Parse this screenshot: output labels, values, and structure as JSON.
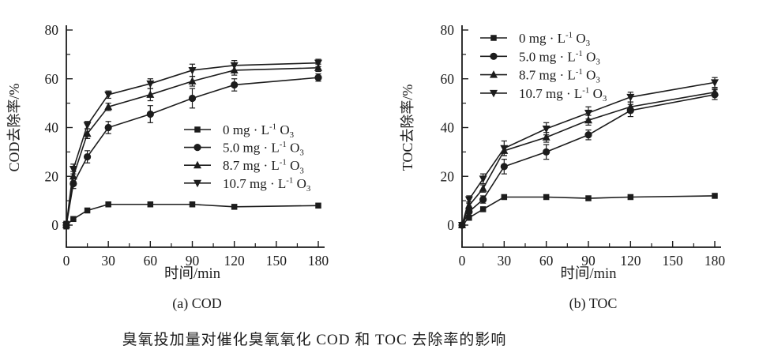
{
  "figure": {
    "caption": "臭氧投加量对催化臭氧氧化 COD 和 TOC 去除率的影响",
    "ink_color": "#1c1c1c",
    "background": "#ffffff"
  },
  "chart_data": [
    {
      "type": "line",
      "id": "cod",
      "subplot_label": "(a) COD",
      "xlabel": "时间/min",
      "ylabel": "COD去除率/%",
      "xlim": [
        0,
        180
      ],
      "ylim": [
        0,
        80
      ],
      "x_major_ticks": [
        0,
        30,
        60,
        90,
        120,
        150,
        180
      ],
      "x_minor_ticks": [
        15,
        45,
        75,
        105,
        135,
        165
      ],
      "y_major_ticks": [
        0,
        20,
        40,
        60,
        80
      ],
      "y_minor_ticks": [
        10,
        30,
        50,
        70
      ],
      "grid": false,
      "legend_position": "center-right",
      "x": [
        0,
        5,
        15,
        30,
        60,
        90,
        120,
        180
      ],
      "series": [
        {
          "name": "0 mg·L⁻¹ O₃",
          "label_pre": "0 mg · L",
          "label_sup": "-1",
          "label_mid": " O",
          "label_sub": "3",
          "marker": "square",
          "values": [
            0,
            2.5,
            6,
            8.5,
            8.5,
            8.5,
            7.5,
            8
          ],
          "errors": [
            1.5,
            0,
            0,
            0,
            0,
            0,
            0,
            0
          ]
        },
        {
          "name": "5.0 mg·L⁻¹ O₃",
          "label_pre": "5.0 mg · L",
          "label_sup": "-1",
          "label_mid": " O",
          "label_sub": "3",
          "marker": "circle",
          "values": [
            0,
            17,
            28,
            40,
            45.5,
            52,
            57.5,
            60.5
          ],
          "errors": [
            1.5,
            2,
            2.5,
            2.5,
            3.5,
            4,
            2.5,
            1.5
          ]
        },
        {
          "name": "8.7 mg·L⁻¹ O₃",
          "label_pre": "8.7 mg · L",
          "label_sup": "-1",
          "label_mid": " O",
          "label_sub": "3",
          "marker": "triangle-up",
          "values": [
            0,
            20,
            37.5,
            48.5,
            53.5,
            59,
            63.5,
            64.5
          ],
          "errors": [
            1.5,
            2,
            2,
            1.5,
            2.5,
            2,
            2,
            1.5
          ]
        },
        {
          "name": "10.7 mg·L⁻¹ O₃",
          "label_pre": "10.7 mg · L",
          "label_sup": "-1",
          "label_mid": " O",
          "label_sub": "3",
          "marker": "triangle-down",
          "values": [
            0,
            23,
            41,
            53.5,
            58,
            63.5,
            65.5,
            66.5
          ],
          "errors": [
            1.5,
            2,
            1.5,
            1.5,
            2,
            2.5,
            2,
            1.5
          ]
        }
      ]
    },
    {
      "type": "line",
      "id": "toc",
      "subplot_label": "(b) TOC",
      "xlabel": "时间/min",
      "ylabel": "TOC去除率/%",
      "xlim": [
        0,
        180
      ],
      "ylim": [
        0,
        80
      ],
      "x_major_ticks": [
        0,
        30,
        60,
        90,
        120,
        150,
        180
      ],
      "x_minor_ticks": [
        15,
        45,
        75,
        105,
        135,
        165
      ],
      "y_major_ticks": [
        0,
        20,
        40,
        60,
        80
      ],
      "y_minor_ticks": [
        10,
        30,
        50,
        70
      ],
      "grid": false,
      "legend_position": "top-left",
      "x": [
        0,
        5,
        15,
        30,
        60,
        90,
        120,
        180
      ],
      "series": [
        {
          "name": "0 mg·L⁻¹ O₃",
          "label_pre": "0 mg · L",
          "label_sup": "-1",
          "label_mid": " O",
          "label_sub": "3",
          "marker": "square",
          "values": [
            0,
            3,
            6.5,
            11.5,
            11.5,
            11,
            11.5,
            12
          ],
          "errors": [
            1,
            0,
            0,
            0,
            0,
            0,
            0,
            0
          ]
        },
        {
          "name": "5.0 mg·L⁻¹ O₃",
          "label_pre": "5.0 mg · L",
          "label_sup": "-1",
          "label_mid": " O",
          "label_sub": "3",
          "marker": "circle",
          "values": [
            0,
            5.5,
            10.5,
            24,
            30,
            37,
            47,
            53.5
          ],
          "errors": [
            1,
            1.5,
            1.5,
            3,
            3,
            2,
            2.5,
            2
          ]
        },
        {
          "name": "8.7 mg·L⁻¹ O₃",
          "label_pre": "8.7 mg · L",
          "label_sup": "-1",
          "label_mid": " O",
          "label_sub": "3",
          "marker": "triangle-up",
          "values": [
            0,
            8,
            15,
            30.5,
            36,
            43,
            48.5,
            54.5
          ],
          "errors": [
            1,
            1.5,
            1.5,
            2,
            2,
            2,
            2,
            1.5
          ]
        },
        {
          "name": "10.7 mg·L⁻¹ O₃",
          "label_pre": "10.7 mg · L",
          "label_sup": "-1",
          "label_mid": " O",
          "label_sub": "3",
          "marker": "triangle-down",
          "values": [
            0,
            10.5,
            19,
            31.5,
            39.5,
            46,
            52.5,
            58.5
          ],
          "errors": [
            1,
            1.5,
            2,
            3,
            2.5,
            2.5,
            2,
            2
          ]
        }
      ]
    }
  ]
}
